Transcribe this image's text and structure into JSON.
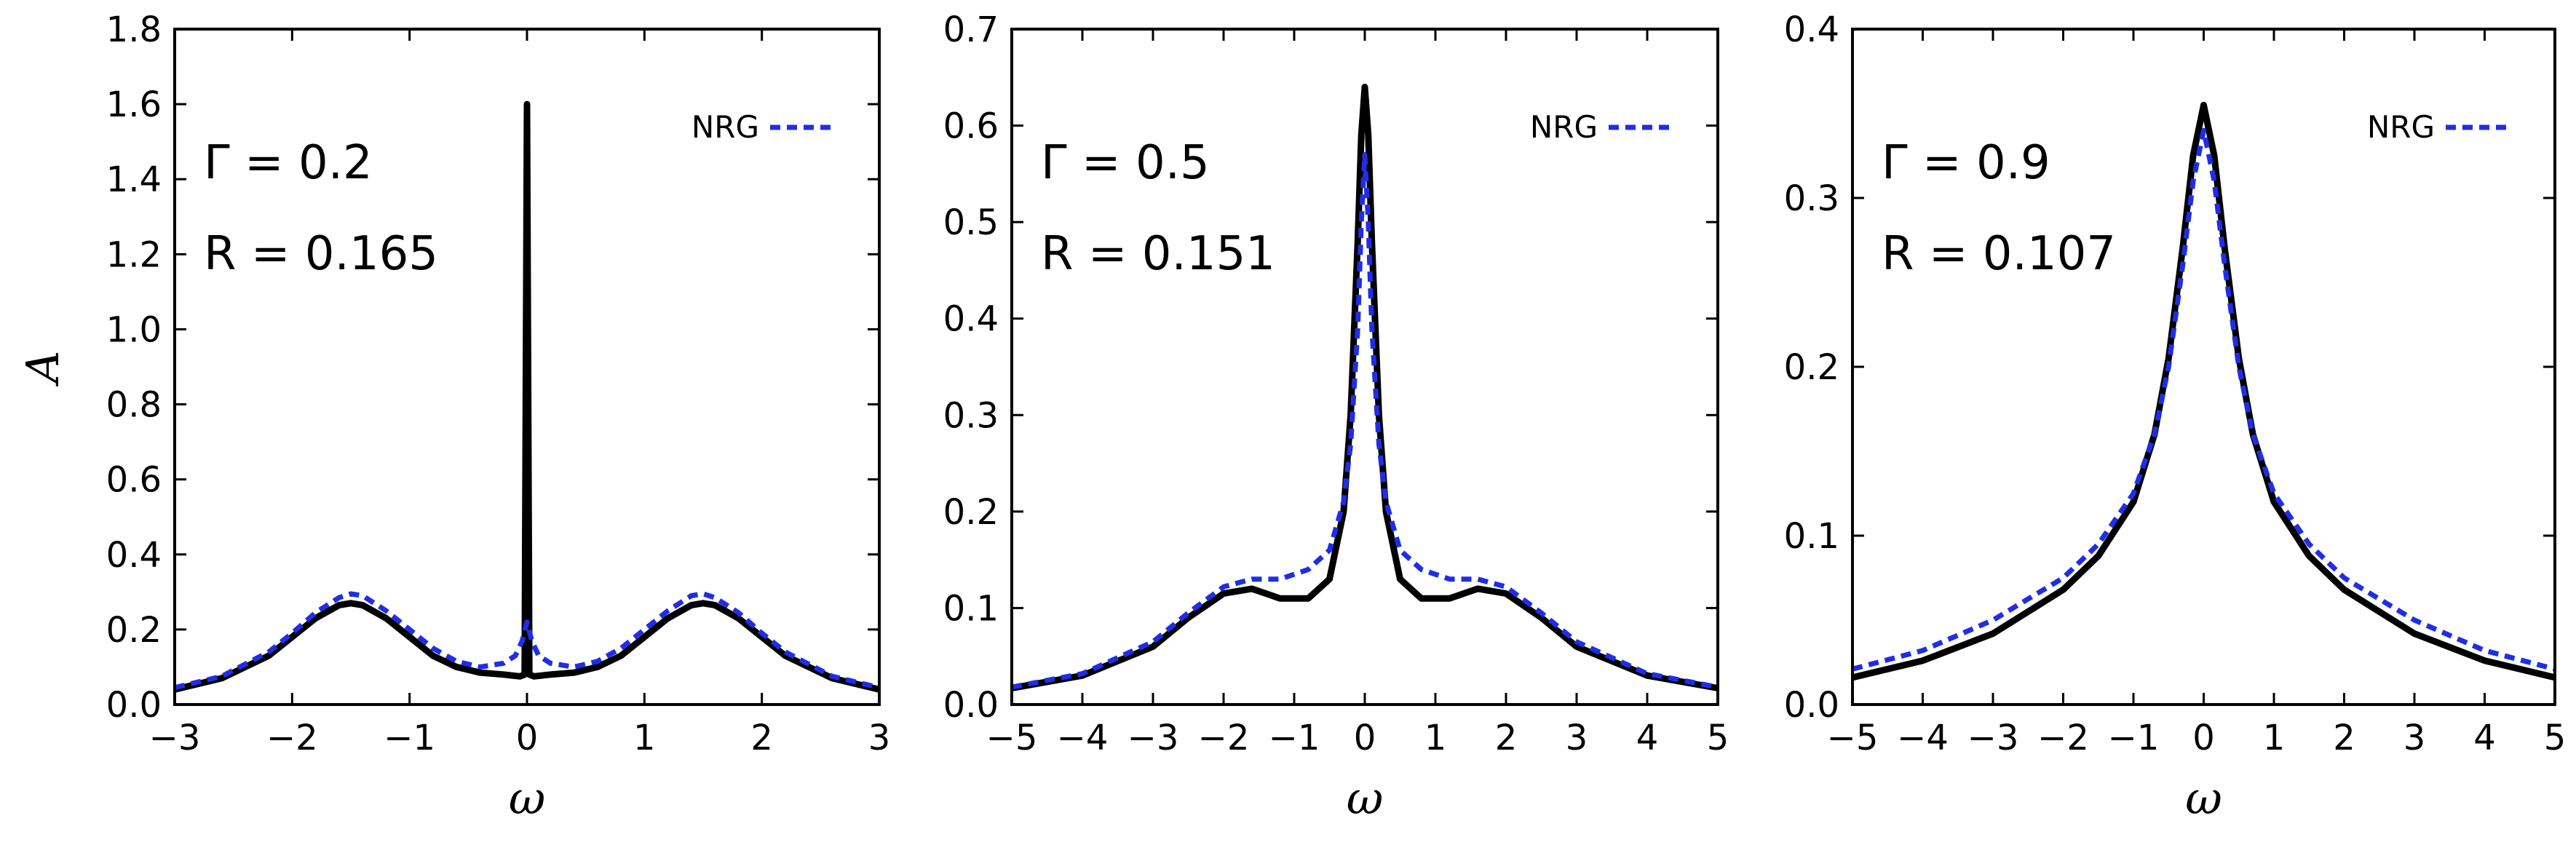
{
  "colors": {
    "ded": "#000000",
    "nrg": "#1f2ee6",
    "background": "#ffffff"
  },
  "chart_data": [
    {
      "type": "line",
      "annotations": [
        "Γ = 0.2",
        "R = 0.165"
      ],
      "xlabel": "ω",
      "ylabel": "A",
      "xlim": [
        -3,
        3
      ],
      "ylim": [
        0,
        1.8
      ],
      "xticks": [
        -3,
        -2,
        -1,
        0,
        1,
        2,
        3
      ],
      "yticks": [
        0.0,
        0.2,
        0.4,
        0.6,
        0.8,
        1.0,
        1.2,
        1.4,
        1.6,
        1.8
      ],
      "ytick_labels": [
        "0.0",
        "0.2",
        "0.4",
        "0.6",
        "0.8",
        "1.0",
        "1.2",
        "1.4",
        "1.6",
        "1.8"
      ],
      "legend": {
        "placement": "top-right",
        "entries": [
          "NRG"
        ]
      },
      "grid": false,
      "series": [
        {
          "name": "",
          "style": "solid",
          "x": [
            -3,
            -2.6,
            -2.2,
            -2.0,
            -1.8,
            -1.6,
            -1.5,
            -1.4,
            -1.2,
            -1.0,
            -0.8,
            -0.6,
            -0.4,
            -0.2,
            -0.06,
            -0.02,
            0.0,
            0.02,
            0.06,
            0.2,
            0.4,
            0.6,
            0.8,
            1.0,
            1.2,
            1.4,
            1.5,
            1.6,
            1.8,
            2.0,
            2.2,
            2.6,
            3.0
          ],
          "y": [
            0.04,
            0.07,
            0.13,
            0.18,
            0.23,
            0.265,
            0.27,
            0.265,
            0.23,
            0.18,
            0.13,
            0.1,
            0.085,
            0.08,
            0.075,
            0.08,
            1.6,
            0.08,
            0.075,
            0.08,
            0.085,
            0.1,
            0.13,
            0.18,
            0.23,
            0.265,
            0.27,
            0.265,
            0.23,
            0.18,
            0.13,
            0.07,
            0.04
          ]
        },
        {
          "name": "NRG",
          "style": "dashed",
          "x": [
            -3,
            -2.6,
            -2.2,
            -2.0,
            -1.8,
            -1.6,
            -1.5,
            -1.4,
            -1.2,
            -1.0,
            -0.8,
            -0.6,
            -0.4,
            -0.2,
            -0.1,
            -0.04,
            0.0,
            0.04,
            0.1,
            0.2,
            0.4,
            0.6,
            0.8,
            1.0,
            1.2,
            1.4,
            1.5,
            1.6,
            1.8,
            2.0,
            2.2,
            2.6,
            3.0
          ],
          "y": [
            0.045,
            0.075,
            0.14,
            0.19,
            0.245,
            0.285,
            0.295,
            0.29,
            0.25,
            0.2,
            0.15,
            0.115,
            0.1,
            0.11,
            0.13,
            0.17,
            0.22,
            0.17,
            0.13,
            0.11,
            0.1,
            0.115,
            0.15,
            0.2,
            0.25,
            0.29,
            0.295,
            0.285,
            0.245,
            0.19,
            0.14,
            0.075,
            0.045
          ]
        }
      ]
    },
    {
      "type": "line",
      "annotations": [
        "Γ = 0.5",
        "R = 0.151"
      ],
      "xlabel": "ω",
      "ylabel": "",
      "xlim": [
        -5,
        5
      ],
      "ylim": [
        0,
        0.7
      ],
      "xticks": [
        -5,
        -4,
        -3,
        -2,
        -1,
        0,
        1,
        2,
        3,
        4,
        5
      ],
      "yticks": [
        0.0,
        0.1,
        0.2,
        0.3,
        0.4,
        0.5,
        0.6,
        0.7
      ],
      "ytick_labels": [
        "0.0",
        "0.1",
        "0.2",
        "0.3",
        "0.4",
        "0.5",
        "0.6",
        "0.7"
      ],
      "legend": {
        "placement": "top-right",
        "entries": [
          "NRG"
        ]
      },
      "grid": false,
      "series": [
        {
          "name": "",
          "style": "solid",
          "x": [
            -5,
            -4,
            -3,
            -2.5,
            -2.0,
            -1.6,
            -1.2,
            -0.8,
            -0.5,
            -0.3,
            -0.2,
            -0.1,
            -0.05,
            0.0,
            0.05,
            0.1,
            0.2,
            0.3,
            0.5,
            0.8,
            1.2,
            1.6,
            2.0,
            2.5,
            3.0,
            4.0,
            5.0
          ],
          "y": [
            0.017,
            0.03,
            0.06,
            0.09,
            0.115,
            0.12,
            0.11,
            0.11,
            0.13,
            0.2,
            0.3,
            0.48,
            0.59,
            0.64,
            0.59,
            0.48,
            0.3,
            0.2,
            0.13,
            0.11,
            0.11,
            0.12,
            0.115,
            0.09,
            0.06,
            0.03,
            0.017
          ]
        },
        {
          "name": "NRG",
          "style": "dashed",
          "x": [
            -5,
            -4,
            -3,
            -2.5,
            -2.0,
            -1.6,
            -1.2,
            -0.8,
            -0.5,
            -0.3,
            -0.2,
            -0.1,
            -0.05,
            0.0,
            0.05,
            0.1,
            0.2,
            0.3,
            0.5,
            0.8,
            1.2,
            1.6,
            2.0,
            2.5,
            3.0,
            4.0,
            5.0
          ],
          "y": [
            0.018,
            0.032,
            0.065,
            0.095,
            0.122,
            0.13,
            0.13,
            0.14,
            0.16,
            0.21,
            0.27,
            0.39,
            0.5,
            0.57,
            0.5,
            0.39,
            0.27,
            0.21,
            0.16,
            0.14,
            0.13,
            0.13,
            0.122,
            0.095,
            0.065,
            0.032,
            0.018
          ]
        }
      ]
    },
    {
      "type": "line",
      "annotations": [
        "Γ = 0.9",
        "R = 0.107"
      ],
      "xlabel": "ω",
      "ylabel": "",
      "xlim": [
        -5,
        5
      ],
      "ylim": [
        0,
        0.4
      ],
      "xticks": [
        -5,
        -4,
        -3,
        -2,
        -1,
        0,
        1,
        2,
        3,
        4,
        5
      ],
      "yticks": [
        0.0,
        0.1,
        0.2,
        0.3,
        0.4
      ],
      "ytick_labels": [
        "0.0",
        "0.1",
        "0.2",
        "0.3",
        "0.4"
      ],
      "legend": {
        "placement": "top-right",
        "entries": [
          "NRG"
        ]
      },
      "grid": false,
      "series": [
        {
          "name": "",
          "style": "solid",
          "x": [
            -5,
            -4,
            -3,
            -2,
            -1.5,
            -1.0,
            -0.7,
            -0.5,
            -0.3,
            -0.15,
            0.0,
            0.15,
            0.3,
            0.5,
            0.7,
            1.0,
            1.5,
            2.0,
            3.0,
            4.0,
            5.0
          ],
          "y": [
            0.016,
            0.026,
            0.042,
            0.068,
            0.088,
            0.12,
            0.16,
            0.205,
            0.27,
            0.325,
            0.355,
            0.325,
            0.27,
            0.205,
            0.16,
            0.12,
            0.088,
            0.068,
            0.042,
            0.026,
            0.016
          ]
        },
        {
          "name": "NRG",
          "style": "dashed",
          "x": [
            -5,
            -4,
            -3,
            -2,
            -1.5,
            -1.0,
            -0.7,
            -0.5,
            -0.3,
            -0.15,
            0.0,
            0.15,
            0.3,
            0.5,
            0.7,
            1.0,
            1.5,
            2.0,
            3.0,
            4.0,
            5.0
          ],
          "y": [
            0.021,
            0.032,
            0.05,
            0.075,
            0.095,
            0.125,
            0.16,
            0.2,
            0.26,
            0.31,
            0.34,
            0.31,
            0.26,
            0.2,
            0.16,
            0.125,
            0.095,
            0.075,
            0.05,
            0.032,
            0.021
          ]
        }
      ]
    }
  ]
}
